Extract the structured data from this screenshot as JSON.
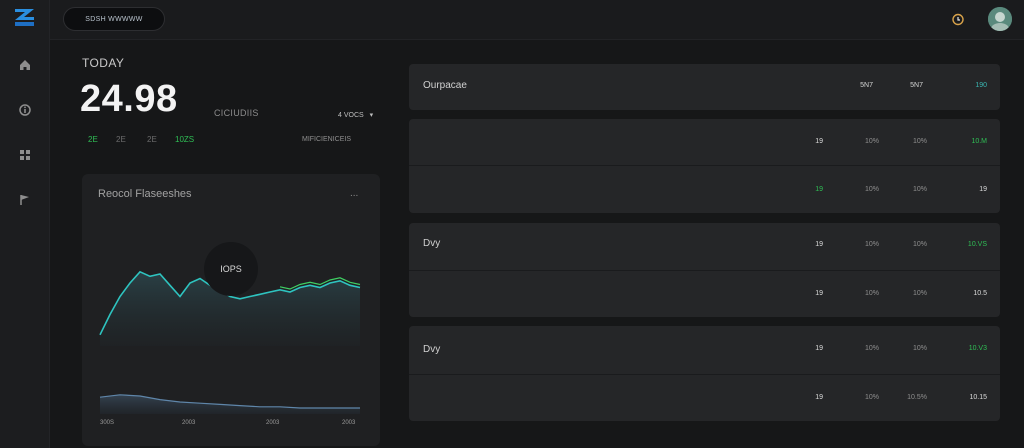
{
  "topbar": {
    "search_text": "SDSH WWWWW"
  },
  "sidebar": {
    "items": [
      {
        "icon": "home-icon"
      },
      {
        "icon": "info-icon"
      },
      {
        "icon": "grid-icon"
      },
      {
        "icon": "flag-icon"
      }
    ]
  },
  "today": {
    "label": "TODAY",
    "value": "24.98",
    "unit": "CICIUDIIS",
    "votes": "4 VOCS",
    "metrics": [
      "2E",
      "2E",
      "2E",
      "10ZS"
    ],
    "right_text": "MIFICIENICEIS"
  },
  "chart_card": {
    "title": "Reocol Flaseeshes",
    "menu": "...",
    "tooltip": "IOPS",
    "x_labels": [
      "300S",
      "2003",
      "2003",
      "2003"
    ]
  },
  "chart_data": {
    "type": "line",
    "series": [
      {
        "values": [
          5,
          14,
          22,
          28,
          33,
          31,
          32,
          27,
          22,
          28,
          30,
          27,
          25,
          22,
          21,
          22,
          23,
          24,
          25,
          24,
          26,
          27,
          26,
          28,
          29,
          27,
          26
        ]
      },
      {
        "values": [
          14,
          16,
          15,
          12,
          10,
          9,
          8,
          7,
          6,
          6,
          5,
          5,
          5,
          5
        ]
      }
    ]
  },
  "panels": {
    "header": {
      "title": "Ourpacae",
      "cols": [
        "5N7",
        "5N7",
        "190"
      ]
    },
    "group1": {
      "rows": [
        {
          "a": "19",
          "b": "10%",
          "c": "10%",
          "d": "10.M"
        },
        {
          "a": "19",
          "b": "10%",
          "c": "10%",
          "d": "19"
        }
      ]
    },
    "group2": {
      "title": "Dvy",
      "rows": [
        {
          "a": "19",
          "b": "10%",
          "c": "10%",
          "d": "10.VS"
        },
        {
          "a": "19",
          "b": "10%",
          "c": "10%",
          "d": "10.5"
        }
      ]
    },
    "group3": {
      "title": "Dvy",
      "rows": [
        {
          "a": "19",
          "b": "10%",
          "c": "10%",
          "d": "10.V3"
        },
        {
          "a": "19",
          "b": "10%",
          "c": "10.5%",
          "d": "10.15"
        }
      ]
    }
  }
}
